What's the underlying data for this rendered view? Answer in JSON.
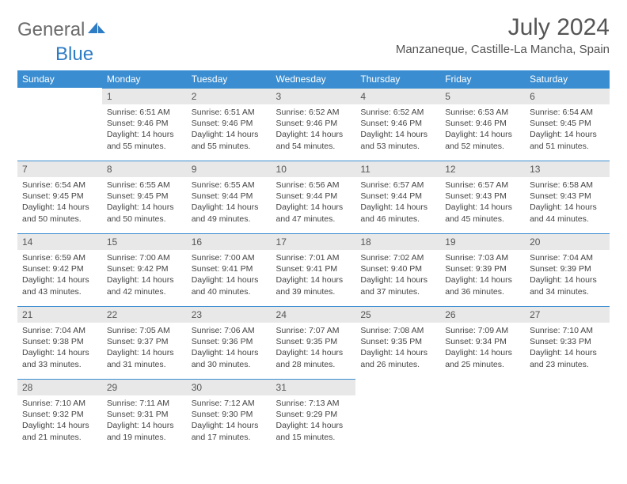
{
  "logo": {
    "text1": "General",
    "text2": "Blue"
  },
  "title": "July 2024",
  "location": "Manzaneque, Castille-La Mancha, Spain",
  "colors": {
    "header_bg": "#3a8dd0",
    "header_text": "#ffffff",
    "daynum_bg": "#e8e8e8",
    "border": "#3a8dd0"
  },
  "weekdays": [
    "Sunday",
    "Monday",
    "Tuesday",
    "Wednesday",
    "Thursday",
    "Friday",
    "Saturday"
  ],
  "weeks": [
    [
      {
        "n": "",
        "sr": "",
        "ss": "",
        "dl": ""
      },
      {
        "n": "1",
        "sr": "6:51 AM",
        "ss": "9:46 PM",
        "dl": "14 hours and 55 minutes."
      },
      {
        "n": "2",
        "sr": "6:51 AM",
        "ss": "9:46 PM",
        "dl": "14 hours and 55 minutes."
      },
      {
        "n": "3",
        "sr": "6:52 AM",
        "ss": "9:46 PM",
        "dl": "14 hours and 54 minutes."
      },
      {
        "n": "4",
        "sr": "6:52 AM",
        "ss": "9:46 PM",
        "dl": "14 hours and 53 minutes."
      },
      {
        "n": "5",
        "sr": "6:53 AM",
        "ss": "9:46 PM",
        "dl": "14 hours and 52 minutes."
      },
      {
        "n": "6",
        "sr": "6:54 AM",
        "ss": "9:45 PM",
        "dl": "14 hours and 51 minutes."
      }
    ],
    [
      {
        "n": "7",
        "sr": "6:54 AM",
        "ss": "9:45 PM",
        "dl": "14 hours and 50 minutes."
      },
      {
        "n": "8",
        "sr": "6:55 AM",
        "ss": "9:45 PM",
        "dl": "14 hours and 50 minutes."
      },
      {
        "n": "9",
        "sr": "6:55 AM",
        "ss": "9:44 PM",
        "dl": "14 hours and 49 minutes."
      },
      {
        "n": "10",
        "sr": "6:56 AM",
        "ss": "9:44 PM",
        "dl": "14 hours and 47 minutes."
      },
      {
        "n": "11",
        "sr": "6:57 AM",
        "ss": "9:44 PM",
        "dl": "14 hours and 46 minutes."
      },
      {
        "n": "12",
        "sr": "6:57 AM",
        "ss": "9:43 PM",
        "dl": "14 hours and 45 minutes."
      },
      {
        "n": "13",
        "sr": "6:58 AM",
        "ss": "9:43 PM",
        "dl": "14 hours and 44 minutes."
      }
    ],
    [
      {
        "n": "14",
        "sr": "6:59 AM",
        "ss": "9:42 PM",
        "dl": "14 hours and 43 minutes."
      },
      {
        "n": "15",
        "sr": "7:00 AM",
        "ss": "9:42 PM",
        "dl": "14 hours and 42 minutes."
      },
      {
        "n": "16",
        "sr": "7:00 AM",
        "ss": "9:41 PM",
        "dl": "14 hours and 40 minutes."
      },
      {
        "n": "17",
        "sr": "7:01 AM",
        "ss": "9:41 PM",
        "dl": "14 hours and 39 minutes."
      },
      {
        "n": "18",
        "sr": "7:02 AM",
        "ss": "9:40 PM",
        "dl": "14 hours and 37 minutes."
      },
      {
        "n": "19",
        "sr": "7:03 AM",
        "ss": "9:39 PM",
        "dl": "14 hours and 36 minutes."
      },
      {
        "n": "20",
        "sr": "7:04 AM",
        "ss": "9:39 PM",
        "dl": "14 hours and 34 minutes."
      }
    ],
    [
      {
        "n": "21",
        "sr": "7:04 AM",
        "ss": "9:38 PM",
        "dl": "14 hours and 33 minutes."
      },
      {
        "n": "22",
        "sr": "7:05 AM",
        "ss": "9:37 PM",
        "dl": "14 hours and 31 minutes."
      },
      {
        "n": "23",
        "sr": "7:06 AM",
        "ss": "9:36 PM",
        "dl": "14 hours and 30 minutes."
      },
      {
        "n": "24",
        "sr": "7:07 AM",
        "ss": "9:35 PM",
        "dl": "14 hours and 28 minutes."
      },
      {
        "n": "25",
        "sr": "7:08 AM",
        "ss": "9:35 PM",
        "dl": "14 hours and 26 minutes."
      },
      {
        "n": "26",
        "sr": "7:09 AM",
        "ss": "9:34 PM",
        "dl": "14 hours and 25 minutes."
      },
      {
        "n": "27",
        "sr": "7:10 AM",
        "ss": "9:33 PM",
        "dl": "14 hours and 23 minutes."
      }
    ],
    [
      {
        "n": "28",
        "sr": "7:10 AM",
        "ss": "9:32 PM",
        "dl": "14 hours and 21 minutes."
      },
      {
        "n": "29",
        "sr": "7:11 AM",
        "ss": "9:31 PM",
        "dl": "14 hours and 19 minutes."
      },
      {
        "n": "30",
        "sr": "7:12 AM",
        "ss": "9:30 PM",
        "dl": "14 hours and 17 minutes."
      },
      {
        "n": "31",
        "sr": "7:13 AM",
        "ss": "9:29 PM",
        "dl": "14 hours and 15 minutes."
      },
      {
        "n": "",
        "sr": "",
        "ss": "",
        "dl": ""
      },
      {
        "n": "",
        "sr": "",
        "ss": "",
        "dl": ""
      },
      {
        "n": "",
        "sr": "",
        "ss": "",
        "dl": ""
      }
    ]
  ],
  "labels": {
    "sunrise": "Sunrise:",
    "sunset": "Sunset:",
    "daylight": "Daylight:"
  }
}
